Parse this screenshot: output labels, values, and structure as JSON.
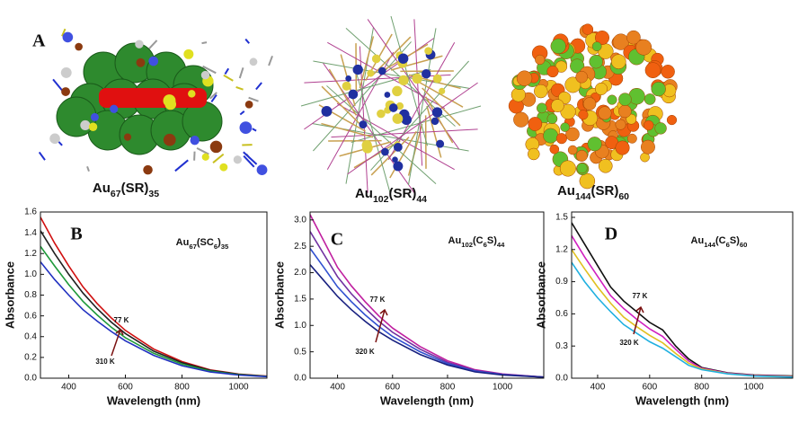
{
  "panel_label": "A",
  "structures": [
    {
      "caption": [
        {
          "text": "Au"
        },
        {
          "text": "67",
          "sub": true
        },
        {
          "text": "(SR)"
        },
        {
          "text": "35",
          "sub": true
        }
      ]
    },
    {
      "caption": [
        {
          "text": "Au"
        },
        {
          "text": "102",
          "sub": true
        },
        {
          "text": "(SR)"
        },
        {
          "text": "44",
          "sub": true
        }
      ]
    },
    {
      "caption": [
        {
          "text": "Au"
        },
        {
          "text": "144",
          "sub": true
        },
        {
          "text": "(SR)"
        },
        {
          "text": "60",
          "sub": true
        }
      ]
    }
  ],
  "chart_data": [
    {
      "type": "line",
      "panel_label": "B",
      "label": [
        {
          "text": "Au"
        },
        {
          "text": "67",
          "sub": true
        },
        {
          "text": "(SC"
        },
        {
          "text": "6",
          "sub": true
        },
        {
          "text": ")"
        },
        {
          "text": "35",
          "sub": true
        }
      ],
      "xlabel": "Wavelength (nm)",
      "ylabel": "Absorbance",
      "x": [
        300,
        350,
        400,
        450,
        500,
        550,
        600,
        700,
        800,
        900,
        1000,
        1100
      ],
      "series": [
        {
          "color": "#d01010",
          "values": [
            1.55,
            1.3,
            1.08,
            0.88,
            0.72,
            0.58,
            0.46,
            0.28,
            0.16,
            0.08,
            0.04,
            0.02
          ]
        },
        {
          "color": "#202020",
          "values": [
            1.42,
            1.2,
            1.0,
            0.82,
            0.67,
            0.54,
            0.43,
            0.26,
            0.15,
            0.075,
            0.037,
            0.018
          ]
        },
        {
          "color": "#1f9a3a",
          "values": [
            1.27,
            1.08,
            0.9,
            0.74,
            0.61,
            0.49,
            0.39,
            0.24,
            0.135,
            0.068,
            0.034,
            0.016
          ]
        },
        {
          "color": "#2030c0",
          "values": [
            1.12,
            0.95,
            0.8,
            0.66,
            0.55,
            0.45,
            0.36,
            0.22,
            0.12,
            0.06,
            0.03,
            0.015
          ]
        }
      ],
      "annotations": [
        "77 K",
        "310 K"
      ],
      "xlim": [
        300,
        1100
      ],
      "ylim": [
        0,
        1.6
      ],
      "xticks": [
        400,
        600,
        800,
        1000
      ],
      "yticks": [
        {
          "value": 0,
          "label": "0.0"
        },
        0.2,
        0.4,
        0.6,
        0.8,
        {
          "value": 1,
          "label": "1.0"
        },
        1.2,
        1.4,
        1.6
      ]
    },
    {
      "type": "line",
      "panel_label": "C",
      "label": [
        {
          "text": "Au"
        },
        {
          "text": "102",
          "sub": true
        },
        {
          "text": "(C"
        },
        {
          "text": "6",
          "sub": true
        },
        {
          "text": "S)"
        },
        {
          "text": "44",
          "sub": true
        }
      ],
      "xlabel": "Wavelength (nm)",
      "ylabel": "Absorbance",
      "x": [
        300,
        350,
        400,
        450,
        500,
        550,
        600,
        700,
        800,
        900,
        1000,
        1150
      ],
      "series": [
        {
          "color": "#c020a0",
          "values": [
            3.1,
            2.6,
            2.1,
            1.75,
            1.45,
            1.18,
            0.95,
            0.6,
            0.33,
            0.16,
            0.08,
            0.02
          ]
        },
        {
          "color": "#7030a0",
          "values": [
            2.78,
            2.35,
            1.92,
            1.6,
            1.33,
            1.08,
            0.87,
            0.55,
            0.3,
            0.146,
            0.073,
            0.02
          ]
        },
        {
          "color": "#3050d0",
          "values": [
            2.46,
            2.1,
            1.73,
            1.45,
            1.2,
            0.98,
            0.79,
            0.5,
            0.275,
            0.133,
            0.066,
            0.02
          ]
        },
        {
          "color": "#182080",
          "values": [
            2.15,
            1.85,
            1.55,
            1.3,
            1.08,
            0.88,
            0.72,
            0.45,
            0.25,
            0.12,
            0.06,
            0.02
          ]
        }
      ],
      "annotations": [
        "77 K",
        "320 K"
      ],
      "xlim": [
        300,
        1150
      ],
      "ylim": [
        0,
        3.15
      ],
      "xticks": [
        400,
        600,
        800,
        1000
      ],
      "yticks": [
        {
          "value": 0,
          "label": "0.0"
        },
        0.5,
        {
          "value": 1,
          "label": "1.0"
        },
        1.5,
        {
          "value": 2,
          "label": "2.0"
        },
        2.5,
        {
          "value": 3,
          "label": "3.0"
        }
      ]
    },
    {
      "type": "line",
      "panel_label": "D",
      "label": [
        {
          "text": "Au"
        },
        {
          "text": "144",
          "sub": true
        },
        {
          "text": "(C"
        },
        {
          "text": "6",
          "sub": true
        },
        {
          "text": "S)"
        },
        {
          "text": "60",
          "sub": true
        }
      ],
      "xlabel": "Wavelength (nm)",
      "ylabel": "Absorbance",
      "x": [
        300,
        350,
        400,
        450,
        500,
        550,
        600,
        650,
        700,
        750,
        800,
        900,
        1000,
        1150
      ],
      "series": [
        {
          "color": "#101010",
          "values": [
            1.45,
            1.25,
            1.05,
            0.85,
            0.72,
            0.62,
            0.52,
            0.45,
            0.3,
            0.18,
            0.1,
            0.05,
            0.03,
            0.02
          ]
        },
        {
          "color": "#d020c0",
          "values": [
            1.33,
            1.13,
            0.95,
            0.77,
            0.65,
            0.55,
            0.46,
            0.39,
            0.27,
            0.16,
            0.093,
            0.047,
            0.027,
            0.017
          ]
        },
        {
          "color": "#e0c020",
          "values": [
            1.2,
            1.02,
            0.85,
            0.7,
            0.57,
            0.48,
            0.4,
            0.33,
            0.23,
            0.14,
            0.086,
            0.043,
            0.023,
            0.013
          ]
        },
        {
          "color": "#20b0e0",
          "values": [
            1.08,
            0.9,
            0.75,
            0.62,
            0.5,
            0.42,
            0.34,
            0.28,
            0.2,
            0.12,
            0.08,
            0.04,
            0.02,
            0.01
          ]
        }
      ],
      "annotations": [
        "77 K",
        "320 K"
      ],
      "xlim": [
        300,
        1150
      ],
      "ylim": [
        0,
        1.55
      ],
      "xticks": [
        400,
        600,
        800,
        1000
      ],
      "yticks": [
        {
          "value": 0,
          "label": "0.0"
        },
        0.3,
        0.6,
        0.9,
        1.2,
        1.5
      ]
    }
  ]
}
